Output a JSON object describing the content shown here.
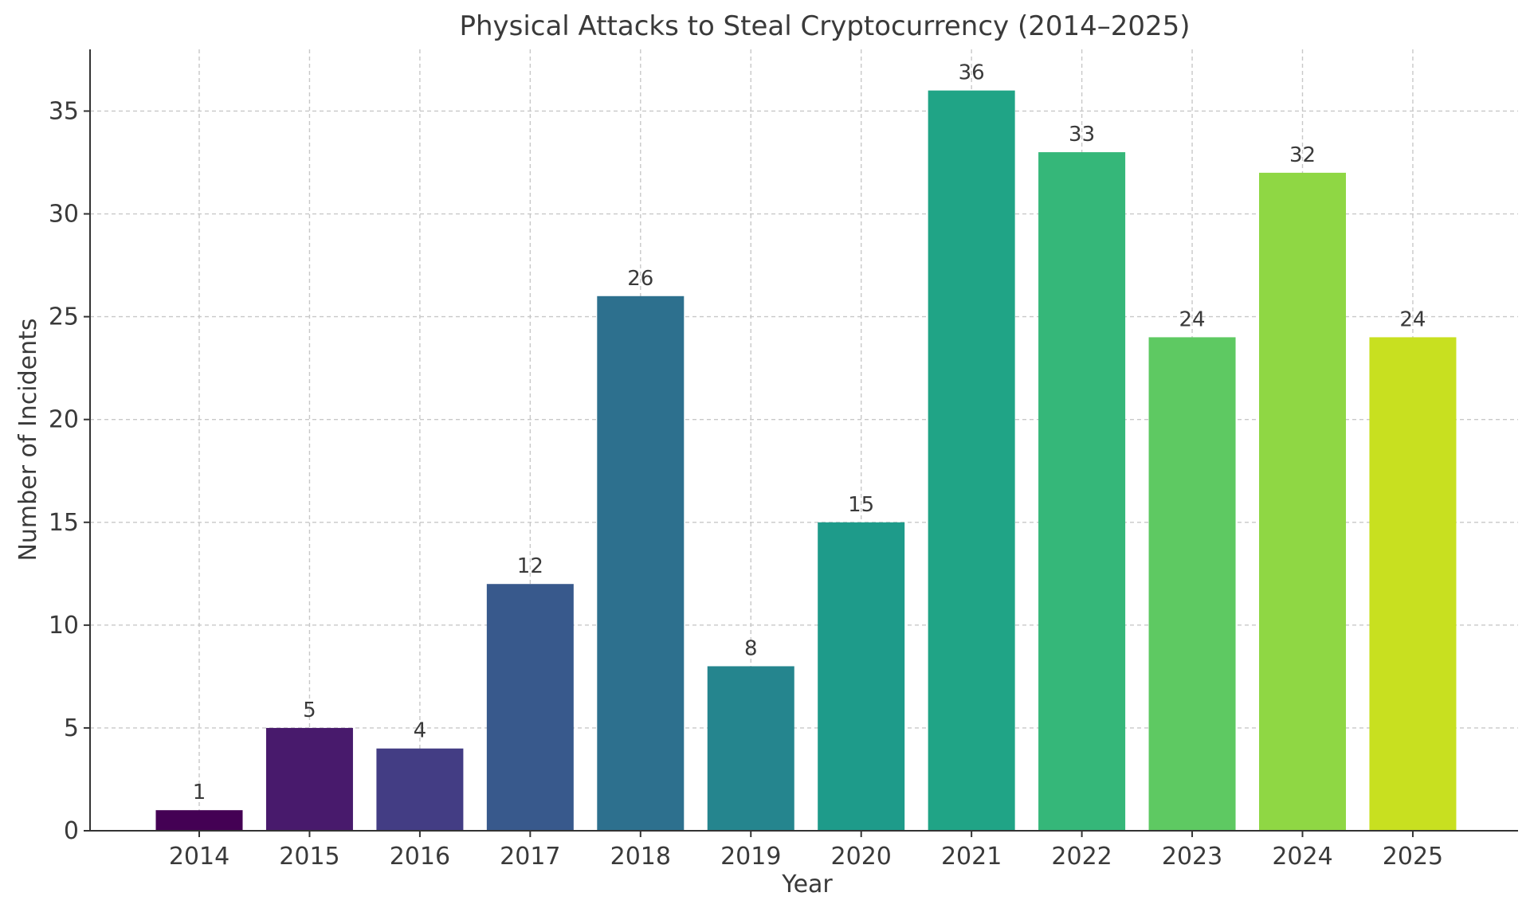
{
  "chart_data": {
    "type": "bar",
    "title": "Physical Attacks to Steal Cryptocurrency (2014–2025)",
    "xlabel": "Year",
    "ylabel": "Number of Incidents",
    "categories": [
      "2014",
      "2015",
      "2016",
      "2017",
      "2018",
      "2019",
      "2020",
      "2021",
      "2022",
      "2023",
      "2024",
      "2025"
    ],
    "values": [
      1,
      5,
      4,
      12,
      26,
      8,
      15,
      36,
      33,
      24,
      32,
      24
    ],
    "data_labels": [
      "1",
      "5",
      "4",
      "12",
      "26",
      "8",
      "15",
      "36",
      "33",
      "24",
      "32",
      "24"
    ],
    "bar_colors": [
      "#440154",
      "#481a6c",
      "#433d84",
      "#38598c",
      "#2d708e",
      "#25858e",
      "#1e9b8a",
      "#20a486",
      "#35b779",
      "#5ec962",
      "#8fd744",
      "#c8e020"
    ],
    "y_ticks": [
      0,
      5,
      10,
      15,
      20,
      25,
      30,
      35
    ],
    "y_tick_labels": [
      "0",
      "5",
      "10",
      "15",
      "20",
      "25",
      "30",
      "35"
    ],
    "ylim": [
      0,
      38
    ],
    "grid": true,
    "legend": "none"
  }
}
